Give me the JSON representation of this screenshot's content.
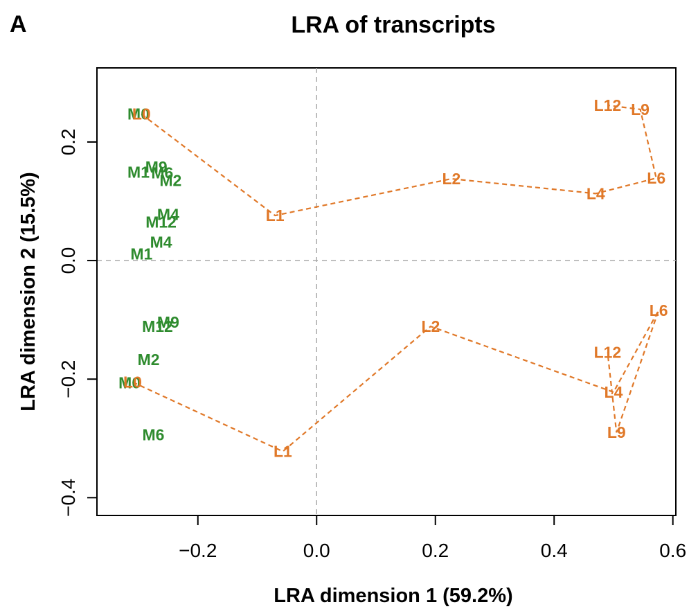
{
  "panel_letter": "A",
  "chart_data": {
    "type": "scatter",
    "title": "LRA of transcripts",
    "xlabel": "LRA dimension 1 (59.2%)",
    "ylabel": "LRA dimension 2 (15.5%)",
    "xlim": [
      -0.37,
      0.605
    ],
    "ylim": [
      -0.43,
      0.325
    ],
    "xticks": [
      -0.2,
      0.0,
      0.2,
      0.4,
      0.6
    ],
    "xtick_labels": [
      "−0.2",
      "0.0",
      "0.2",
      "0.4",
      "0.6"
    ],
    "yticks": [
      -0.4,
      -0.2,
      0.0,
      0.2
    ],
    "ytick_labels": [
      "−0.4",
      "−0.2",
      "0.0",
      "0.2"
    ],
    "reference_lines": {
      "x": 0.0,
      "y": 0.0,
      "style": "dashed",
      "color": "#aaaaaa"
    },
    "grid": false,
    "colors": {
      "M": "#2e8b2e",
      "L": "#e07828"
    },
    "series": [
      {
        "group": "M",
        "connected": false,
        "points": [
          {
            "label": "M0",
            "x": -0.3,
            "y": 0.247
          },
          {
            "label": "M9",
            "x": -0.27,
            "y": 0.158
          },
          {
            "label": "M1",
            "x": -0.3,
            "y": 0.149
          },
          {
            "label": "M6",
            "x": -0.26,
            "y": 0.148
          },
          {
            "label": "M2",
            "x": -0.246,
            "y": 0.135
          },
          {
            "label": "M4",
            "x": -0.25,
            "y": 0.078
          },
          {
            "label": "M12",
            "x": -0.262,
            "y": 0.065
          },
          {
            "label": "M4",
            "x": -0.262,
            "y": 0.031
          },
          {
            "label": "M1",
            "x": -0.295,
            "y": 0.011
          },
          {
            "label": "M9",
            "x": -0.25,
            "y": -0.104
          },
          {
            "label": "M12",
            "x": -0.268,
            "y": -0.111
          },
          {
            "label": "M2",
            "x": -0.283,
            "y": -0.167
          },
          {
            "label": "M0",
            "x": -0.315,
            "y": -0.206
          },
          {
            "label": "M6",
            "x": -0.275,
            "y": -0.294
          }
        ]
      },
      {
        "group": "L",
        "connected": true,
        "points": [
          {
            "label": "L0",
            "x": -0.295,
            "y": 0.247
          },
          {
            "label": "L1",
            "x": -0.07,
            "y": 0.076
          },
          {
            "label": "L2",
            "x": 0.227,
            "y": 0.138
          },
          {
            "label": "L4",
            "x": 0.47,
            "y": 0.113
          },
          {
            "label": "L6",
            "x": 0.572,
            "y": 0.139
          },
          {
            "label": "L9",
            "x": 0.545,
            "y": 0.255
          },
          {
            "label": "L12",
            "x": 0.49,
            "y": 0.262
          }
        ]
      },
      {
        "group": "L",
        "connected": true,
        "points": [
          {
            "label": "L0",
            "x": -0.31,
            "y": -0.205
          },
          {
            "label": "L1",
            "x": -0.057,
            "y": -0.322
          },
          {
            "label": "L2",
            "x": 0.192,
            "y": -0.111
          },
          {
            "label": "L4",
            "x": 0.5,
            "y": -0.222
          },
          {
            "label": "L6",
            "x": 0.576,
            "y": -0.084
          },
          {
            "label": "L9",
            "x": 0.505,
            "y": -0.29
          },
          {
            "label": "L12",
            "x": 0.49,
            "y": -0.155
          }
        ]
      }
    ]
  }
}
